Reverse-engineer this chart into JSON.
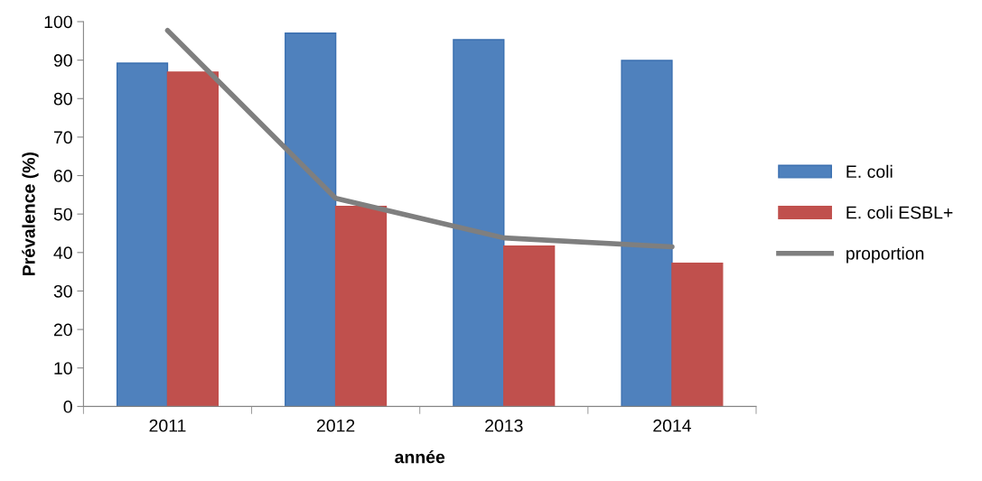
{
  "chart_data": {
    "type": "bar",
    "xlabel": "année",
    "ylabel": "Prévalence (%)",
    "categories": [
      "2011",
      "2012",
      "2013",
      "2014"
    ],
    "series": [
      {
        "name": "E. coli",
        "color": "#4f81bd",
        "values": [
          89.2,
          97.0,
          95.3,
          89.9
        ]
      },
      {
        "name": "E. coli ESBL+",
        "color": "#c0504d",
        "values": [
          86.9,
          52.0,
          41.7,
          37.2
        ]
      },
      {
        "name": "proportion",
        "type": "line",
        "color": "#7f7f7f",
        "values": [
          97.7,
          54.1,
          43.8,
          41.5
        ]
      }
    ],
    "ylim": [
      0,
      100
    ],
    "yticks": [
      0,
      10,
      20,
      30,
      40,
      50,
      60,
      70,
      80,
      90,
      100
    ],
    "legend": "right",
    "grid": false
  }
}
